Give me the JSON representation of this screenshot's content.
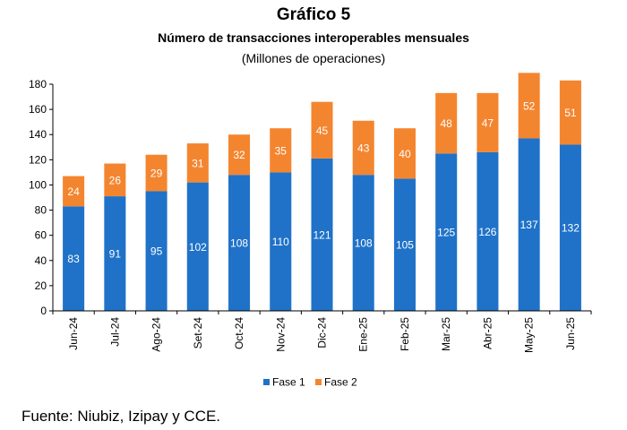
{
  "header": {
    "title": "Gráfico 5",
    "subtitle": "Número de transacciones interoperables mensuales",
    "units": "(Millones de operaciones)"
  },
  "footer": {
    "source": "Fuente: Niubiz, Izipay y CCE."
  },
  "colors": {
    "fase1": "#1f72c8",
    "fase2": "#f4852f",
    "axis": "#000000"
  },
  "chart_data": {
    "type": "bar",
    "stacked": true,
    "categories": [
      "Jun-24",
      "Jul-24",
      "Ago-24",
      "Set-24",
      "Oct-24",
      "Nov-24",
      "Dic-24",
      "Ene-25",
      "Feb-25",
      "Mar-25",
      "Abr-25",
      "May-25",
      "Jun-25"
    ],
    "series": [
      {
        "name": "Fase 1",
        "values": [
          83,
          91,
          95,
          102,
          108,
          110,
          121,
          108,
          105,
          125,
          126,
          137,
          132
        ]
      },
      {
        "name": "Fase 2",
        "values": [
          24,
          26,
          29,
          31,
          32,
          35,
          45,
          43,
          40,
          48,
          47,
          52,
          51
        ]
      }
    ],
    "ylim": [
      0,
      180
    ],
    "yticks": [
      "0",
      "20",
      "40",
      "60",
      "80",
      "100",
      "120",
      "140",
      "160",
      "180"
    ],
    "grid": false,
    "legend": "bottom",
    "data_labels": true
  }
}
